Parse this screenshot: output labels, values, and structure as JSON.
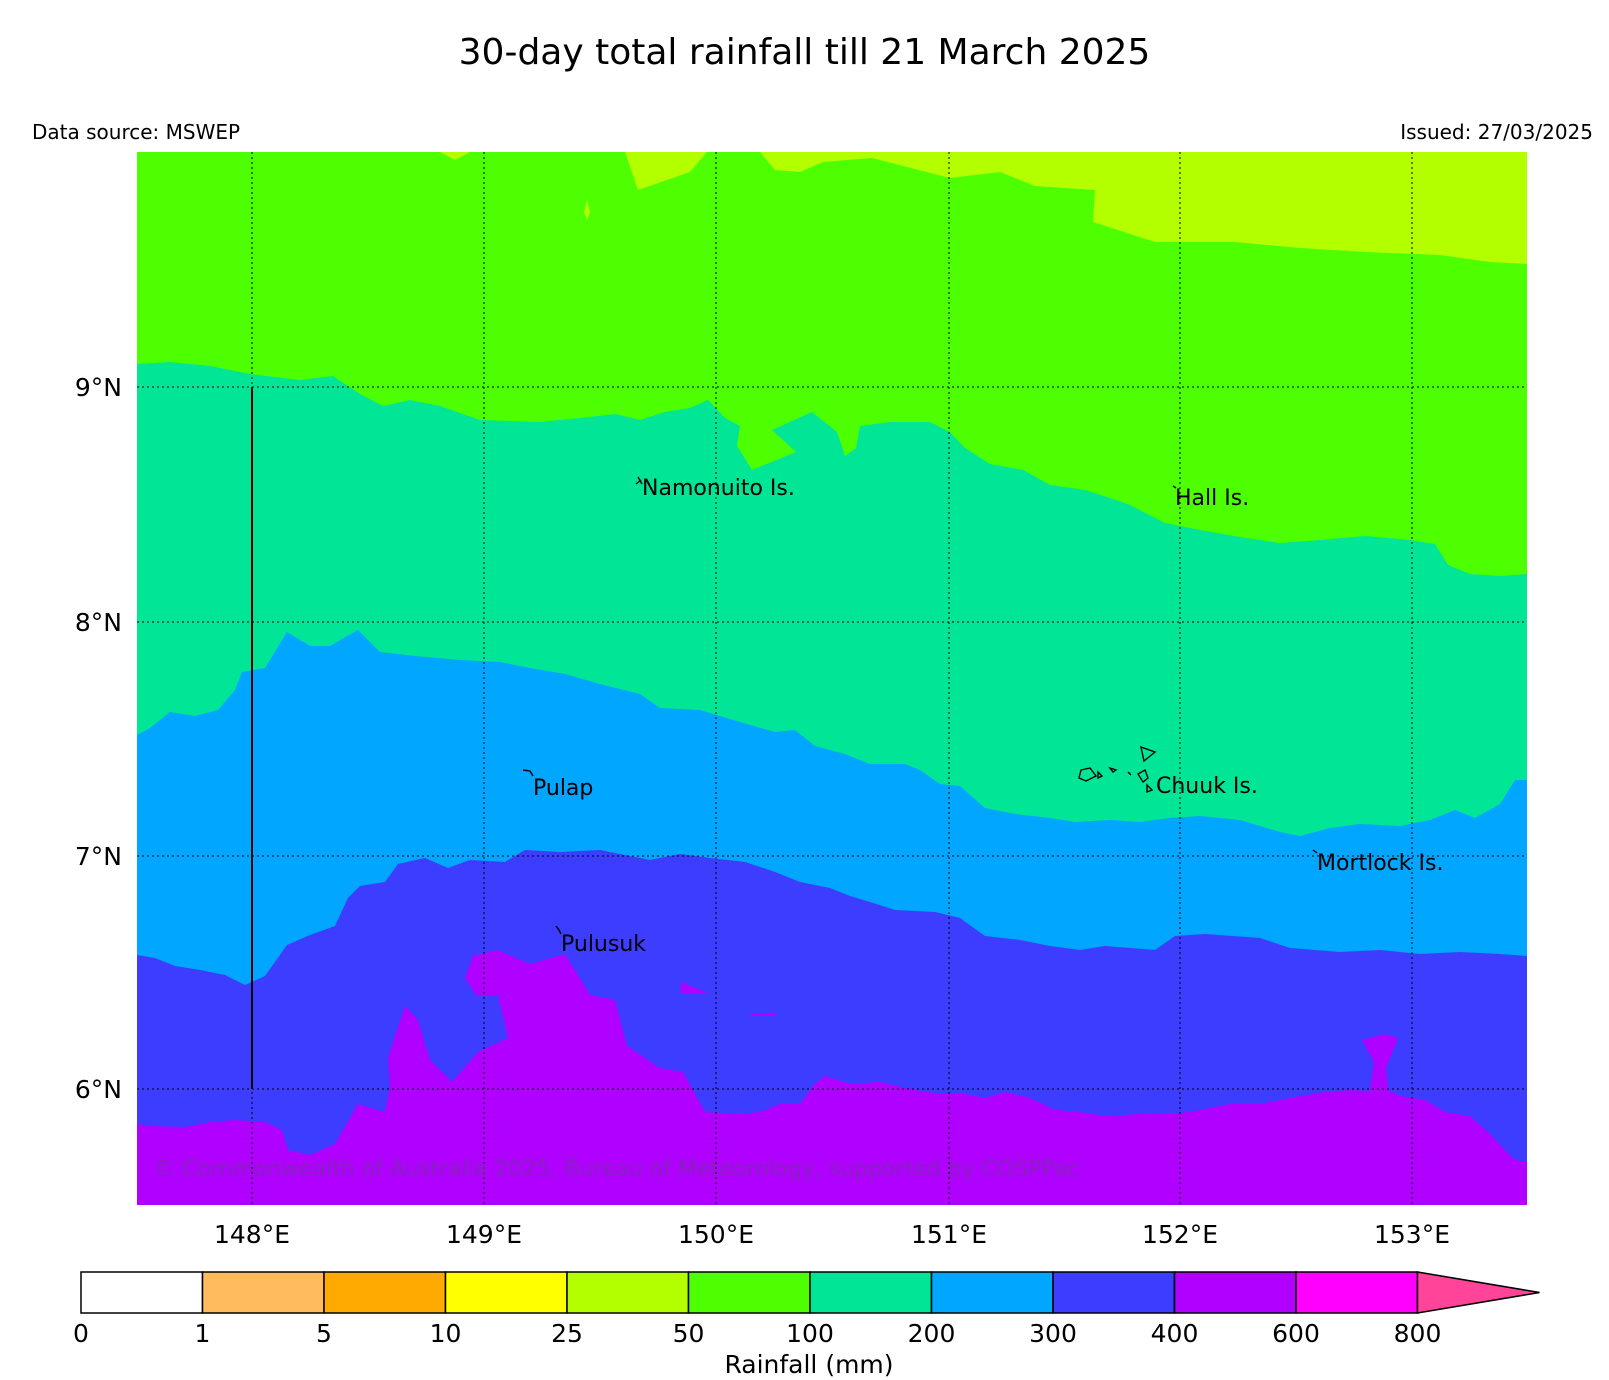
{
  "title": "30-day total rainfall till 21 March 2025",
  "data_source": "Data source: MSWEP",
  "issued": "Issued: 27/03/2025",
  "copyright": "© Commonwealth of Australia 2025, Bureau of Meteorology, supported by COSPPac",
  "axes": {
    "lon_ticks": [
      "148°E",
      "149°E",
      "150°E",
      "151°E",
      "152°E",
      "153°E"
    ],
    "lat_ticks": [
      "9°N",
      "8°N",
      "7°N",
      "6°N"
    ]
  },
  "places": [
    {
      "name": "Namonuito Is.",
      "lon": 149.65,
      "lat": 8.6
    },
    {
      "name": "Hall Is.",
      "lon": 151.98,
      "lat": 8.55
    },
    {
      "name": "Pulap",
      "lon": 149.2,
      "lat": 7.35
    },
    {
      "name": "Chuuk Is.",
      "lon": 151.85,
      "lat": 7.4
    },
    {
      "name": "Mortlock Is.",
      "lon": 152.55,
      "lat": 7.0
    },
    {
      "name": "Pulusuk",
      "lon": 149.33,
      "lat": 6.67
    }
  ],
  "legend": {
    "title": "Rainfall (mm)",
    "thresholds": [
      "0",
      "1",
      "5",
      "10",
      "25",
      "50",
      "100",
      "200",
      "300",
      "400",
      "600",
      "800"
    ],
    "colors": [
      "#ffffff",
      "#ffbb5c",
      "#ffaa00",
      "#ffff00",
      "#b3ff00",
      "#4dff00",
      "#00e696",
      "#00a6ff",
      "#3d3dff",
      "#b000ff",
      "#ff00ff",
      "#ff4499"
    ]
  },
  "colors": {
    "band_25_50": "#b3ff00",
    "band_50_100": "#4dff00",
    "band_100_200": "#00e696",
    "band_200_300": "#00a6ff",
    "band_300_400": "#3d3dff",
    "band_400_600": "#b000ff"
  }
}
